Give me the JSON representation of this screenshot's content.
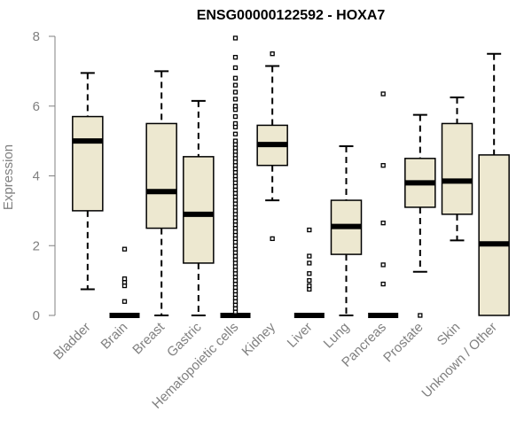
{
  "chart_data": {
    "type": "box",
    "title": "ENSG00000122592 - HOXA7",
    "xlabel": "",
    "ylabel": "Expression",
    "ylim": [
      0,
      8
    ],
    "yticks": [
      0,
      2,
      4,
      6,
      8
    ],
    "box_fill": "#ede8d0",
    "box_stroke": "#000000",
    "axis_color": "#808080",
    "categories": [
      "Bladder",
      "Brain",
      "Breast",
      "Gastric",
      "Hematopoietic cells",
      "Kidney",
      "Liver",
      "Lung",
      "Pancreas",
      "Prostate",
      "Skin",
      "Unknown / Other"
    ],
    "boxes": [
      {
        "name": "Bladder",
        "min": 0.75,
        "q1": 3.0,
        "median": 5.0,
        "q3": 5.7,
        "max": 6.95,
        "outliers": []
      },
      {
        "name": "Brain",
        "min": 0.0,
        "q1": 0.0,
        "median": 0.0,
        "q3": 0.0,
        "max": 0.0,
        "outliers": [
          0.4,
          0.85,
          0.95,
          1.05,
          1.9
        ]
      },
      {
        "name": "Breast",
        "min": 0.0,
        "q1": 2.5,
        "median": 3.55,
        "q3": 5.5,
        "max": 7.0,
        "outliers": []
      },
      {
        "name": "Gastric",
        "min": 0.0,
        "q1": 1.5,
        "median": 2.9,
        "q3": 4.55,
        "max": 6.15,
        "outliers": []
      },
      {
        "name": "Hematopoietic cells",
        "min": 0.0,
        "q1": 0.0,
        "median": 0.0,
        "q3": 0.0,
        "max": 0.0,
        "outliers": [
          0.1,
          0.2,
          0.3,
          0.4,
          0.5,
          0.6,
          0.7,
          0.8,
          0.9,
          1.0,
          1.1,
          1.2,
          1.3,
          1.4,
          1.5,
          1.6,
          1.7,
          1.8,
          1.9,
          2.0,
          2.1,
          2.2,
          2.3,
          2.4,
          2.5,
          2.6,
          2.7,
          2.8,
          2.9,
          3.0,
          3.1,
          3.2,
          3.3,
          3.4,
          3.5,
          3.6,
          3.7,
          3.8,
          3.9,
          4.0,
          4.1,
          4.2,
          4.3,
          4.4,
          4.5,
          4.6,
          4.7,
          4.8,
          4.9,
          5.0,
          5.2,
          5.4,
          5.5,
          5.7,
          5.9,
          6.0,
          6.2,
          6.4,
          6.6,
          6.8,
          7.1,
          7.4,
          7.95
        ]
      },
      {
        "name": "Kidney",
        "min": 3.3,
        "q1": 4.3,
        "median": 4.9,
        "q3": 5.45,
        "max": 7.15,
        "outliers": [
          2.2,
          7.5
        ]
      },
      {
        "name": "Liver",
        "min": 0.0,
        "q1": 0.0,
        "median": 0.0,
        "q3": 0.0,
        "max": 0.0,
        "outliers": [
          0.75,
          0.85,
          1.0,
          1.2,
          1.5,
          1.7,
          2.45
        ]
      },
      {
        "name": "Lung",
        "min": 0.0,
        "q1": 1.75,
        "median": 2.55,
        "q3": 3.3,
        "max": 4.85,
        "outliers": []
      },
      {
        "name": "Pancreas",
        "min": 0.0,
        "q1": 0.0,
        "median": 0.0,
        "q3": 0.0,
        "max": 0.0,
        "outliers": [
          0.9,
          1.45,
          2.65,
          4.3,
          6.35
        ]
      },
      {
        "name": "Prostate",
        "min": 1.25,
        "q1": 3.1,
        "median": 3.8,
        "q3": 4.5,
        "max": 5.75,
        "outliers": [
          0.0
        ]
      },
      {
        "name": "Skin",
        "min": 2.15,
        "q1": 2.9,
        "median": 3.85,
        "q3": 5.5,
        "max": 6.25,
        "outliers": []
      },
      {
        "name": "Unknown / Other",
        "min": 0.0,
        "q1": 0.0,
        "median": 2.05,
        "q3": 4.6,
        "max": 7.5,
        "outliers": []
      }
    ]
  }
}
